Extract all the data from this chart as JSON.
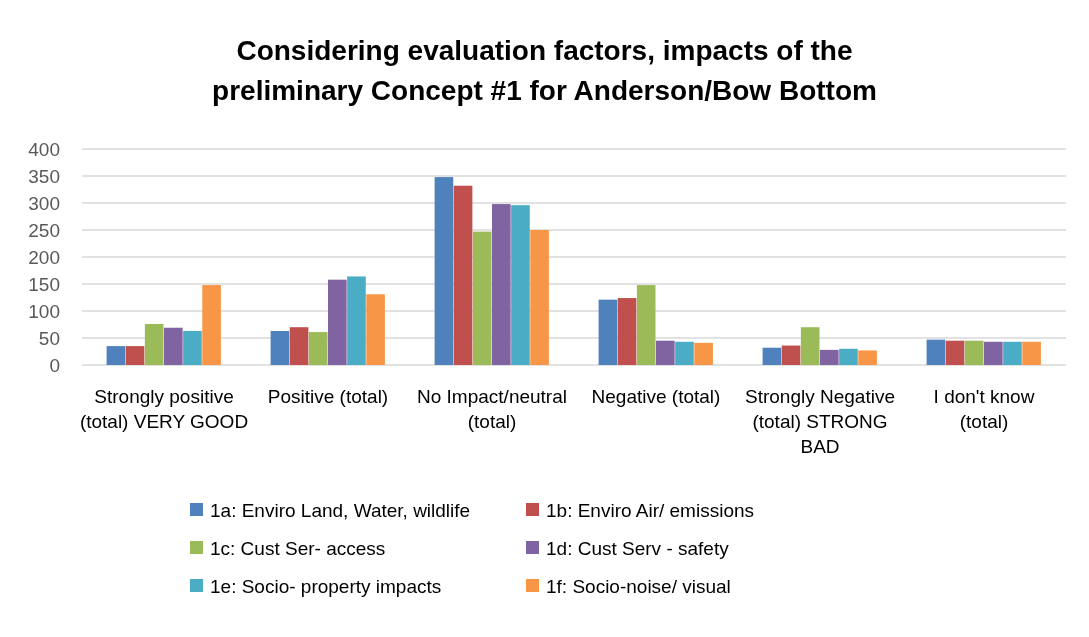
{
  "chart_data": {
    "type": "bar",
    "title": "Considering evaluation factors, impacts of the preliminary Concept #1 for Anderson/Bow Bottom",
    "categories": [
      "Strongly positive (total) VERY GOOD",
      "Positive (total)",
      "No Impact/neutral (total)",
      "Negative (total)",
      "Strongly Negative (total) STRONG BAD",
      "I don't know (total)"
    ],
    "series": [
      {
        "name": "1a: Enviro Land, Water, wildlife",
        "color": "#4f81bd",
        "values": [
          35,
          63,
          348,
          121,
          32,
          47
        ]
      },
      {
        "name": "1b: Enviro Air/ emissions",
        "color": "#c0504d",
        "values": [
          35,
          70,
          332,
          124,
          36,
          45
        ]
      },
      {
        "name": "1c: Cust Ser- access",
        "color": "#9bbb59",
        "values": [
          76,
          61,
          247,
          148,
          70,
          45
        ]
      },
      {
        "name": "1d: Cust Serv - safety",
        "color": "#8064a2",
        "values": [
          69,
          158,
          298,
          45,
          28,
          43
        ]
      },
      {
        "name": "1e: Socio- property impacts",
        "color": "#4bacc6",
        "values": [
          63,
          164,
          296,
          43,
          30,
          43
        ]
      },
      {
        "name": "1f: Socio-noise/ visual",
        "color": "#f79646",
        "values": [
          148,
          131,
          250,
          41,
          27,
          43
        ]
      }
    ],
    "ylim": [
      0,
      400
    ],
    "yticks": [
      0,
      50,
      100,
      150,
      200,
      250,
      300,
      350,
      400
    ],
    "grid": "y",
    "legend": "bottom"
  }
}
